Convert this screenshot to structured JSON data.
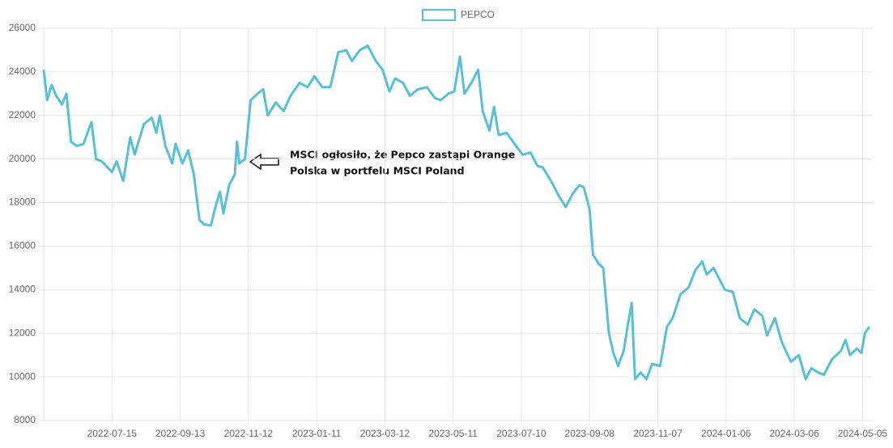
{
  "chart_data": {
    "type": "line",
    "x": [
      "2022-05-16",
      "2022-05-19",
      "2022-05-23",
      "2022-05-27",
      "2022-06-01",
      "2022-06-05",
      "2022-06-09",
      "2022-06-14",
      "2022-06-20",
      "2022-06-27",
      "2022-07-01",
      "2022-07-06",
      "2022-07-15",
      "2022-07-19",
      "2022-07-25",
      "2022-07-31",
      "2022-08-04",
      "2022-08-12",
      "2022-08-19",
      "2022-08-23",
      "2022-08-26",
      "2022-08-31",
      "2022-09-06",
      "2022-09-09",
      "2022-09-15",
      "2022-09-20",
      "2022-09-25",
      "2022-09-30",
      "2022-10-04",
      "2022-10-10",
      "2022-10-14",
      "2022-10-18",
      "2022-10-21",
      "2022-10-26",
      "2022-10-31",
      "2022-11-02",
      "2022-11-04",
      "2022-11-09",
      "2022-11-14",
      "2022-11-20",
      "2022-11-25",
      "2022-11-29",
      "2022-12-06",
      "2022-12-13",
      "2022-12-19",
      "2022-12-27",
      "2023-01-03",
      "2023-01-09",
      "2023-01-16",
      "2023-01-23",
      "2023-01-30",
      "2023-02-06",
      "2023-02-11",
      "2023-02-18",
      "2023-02-25",
      "2023-03-04",
      "2023-03-10",
      "2023-03-16",
      "2023-03-21",
      "2023-03-28",
      "2023-04-03",
      "2023-04-10",
      "2023-04-18",
      "2023-04-25",
      "2023-04-30",
      "2023-05-07",
      "2023-05-12",
      "2023-05-17",
      "2023-05-21",
      "2023-05-27",
      "2023-06-02",
      "2023-06-06",
      "2023-06-12",
      "2023-06-16",
      "2023-06-20",
      "2023-06-27",
      "2023-07-04",
      "2023-07-11",
      "2023-07-18",
      "2023-07-24",
      "2023-07-29",
      "2023-08-05",
      "2023-08-12",
      "2023-08-18",
      "2023-08-24",
      "2023-08-30",
      "2023-09-03",
      "2023-09-08",
      "2023-09-11",
      "2023-09-16",
      "2023-09-20",
      "2023-09-25",
      "2023-09-29",
      "2023-10-03",
      "2023-10-08",
      "2023-10-12",
      "2023-10-15",
      "2023-10-18",
      "2023-10-23",
      "2023-10-28",
      "2023-11-02",
      "2023-11-09",
      "2023-11-15",
      "2023-11-20",
      "2023-11-27",
      "2023-12-04",
      "2023-12-10",
      "2023-12-16",
      "2023-12-20",
      "2023-12-26",
      "2024-01-01",
      "2024-01-05",
      "2024-01-12",
      "2024-01-18",
      "2024-01-25",
      "2024-01-31",
      "2024-02-07",
      "2024-02-11",
      "2024-02-18",
      "2024-02-24",
      "2024-03-03",
      "2024-03-10",
      "2024-03-16",
      "2024-03-21",
      "2024-03-27",
      "2024-04-01",
      "2024-04-08",
      "2024-04-16",
      "2024-04-20",
      "2024-04-24",
      "2024-04-30",
      "2024-05-04",
      "2024-05-07",
      "2024-05-11"
    ],
    "series": [
      {
        "name": "PEPCO",
        "color": "#56c1d4",
        "values": [
          24100,
          22700,
          23400,
          22900,
          22500,
          23000,
          20800,
          20600,
          20700,
          21700,
          20000,
          19900,
          19400,
          19900,
          19000,
          21000,
          20200,
          21600,
          21900,
          21200,
          22000,
          20600,
          19800,
          20700,
          19800,
          20400,
          19300,
          17200,
          17000,
          16950,
          17800,
          18500,
          17500,
          18800,
          19300,
          20800,
          19800,
          20000,
          22700,
          23000,
          23200,
          22000,
          22600,
          22200,
          22900,
          23500,
          23300,
          23800,
          23300,
          23300,
          24900,
          25000,
          24500,
          25000,
          25200,
          24500,
          24100,
          23100,
          23700,
          23500,
          22900,
          23200,
          23300,
          22800,
          22700,
          23000,
          23100,
          24700,
          23000,
          23500,
          24100,
          22200,
          21300,
          22400,
          21100,
          21200,
          20700,
          20200,
          20300,
          19700,
          19600,
          19000,
          18300,
          17800,
          18400,
          18800,
          18700,
          17700,
          15600,
          15200,
          15000,
          12000,
          11100,
          10500,
          11200,
          12500,
          13400,
          9900,
          10200,
          9900,
          10600,
          10500,
          12300,
          12700,
          13800,
          14100,
          14900,
          15300,
          14700,
          15000,
          14400,
          14000,
          13900,
          12700,
          12400,
          13100,
          12800,
          11900,
          12700,
          11600,
          10700,
          11000,
          9900,
          10400,
          10200,
          10100,
          10800,
          11200,
          11700,
          11000,
          11300,
          11100,
          12000,
          12300
        ]
      }
    ],
    "xlim": [
      "2022-05-16",
      "2024-05-14"
    ],
    "xticks": [
      "2022-07-15",
      "2022-09-13",
      "2022-11-12",
      "2023-01-11",
      "2023-03-12",
      "2023-05-11",
      "2023-07-10",
      "2023-09-08",
      "2023-11-07",
      "2024-01-06",
      "2024-03-06",
      "2024-05-05"
    ],
    "ylim": [
      8000,
      26000
    ],
    "yticks": [
      8000,
      10000,
      12000,
      14000,
      16000,
      18000,
      20000,
      22000,
      24000,
      26000
    ],
    "grid": true,
    "legend": "top",
    "annotation": [
      "MSCI ogłosiło, że Pepco zastąpi Orange",
      "Polska w portfelu MSCI Poland"
    ]
  }
}
